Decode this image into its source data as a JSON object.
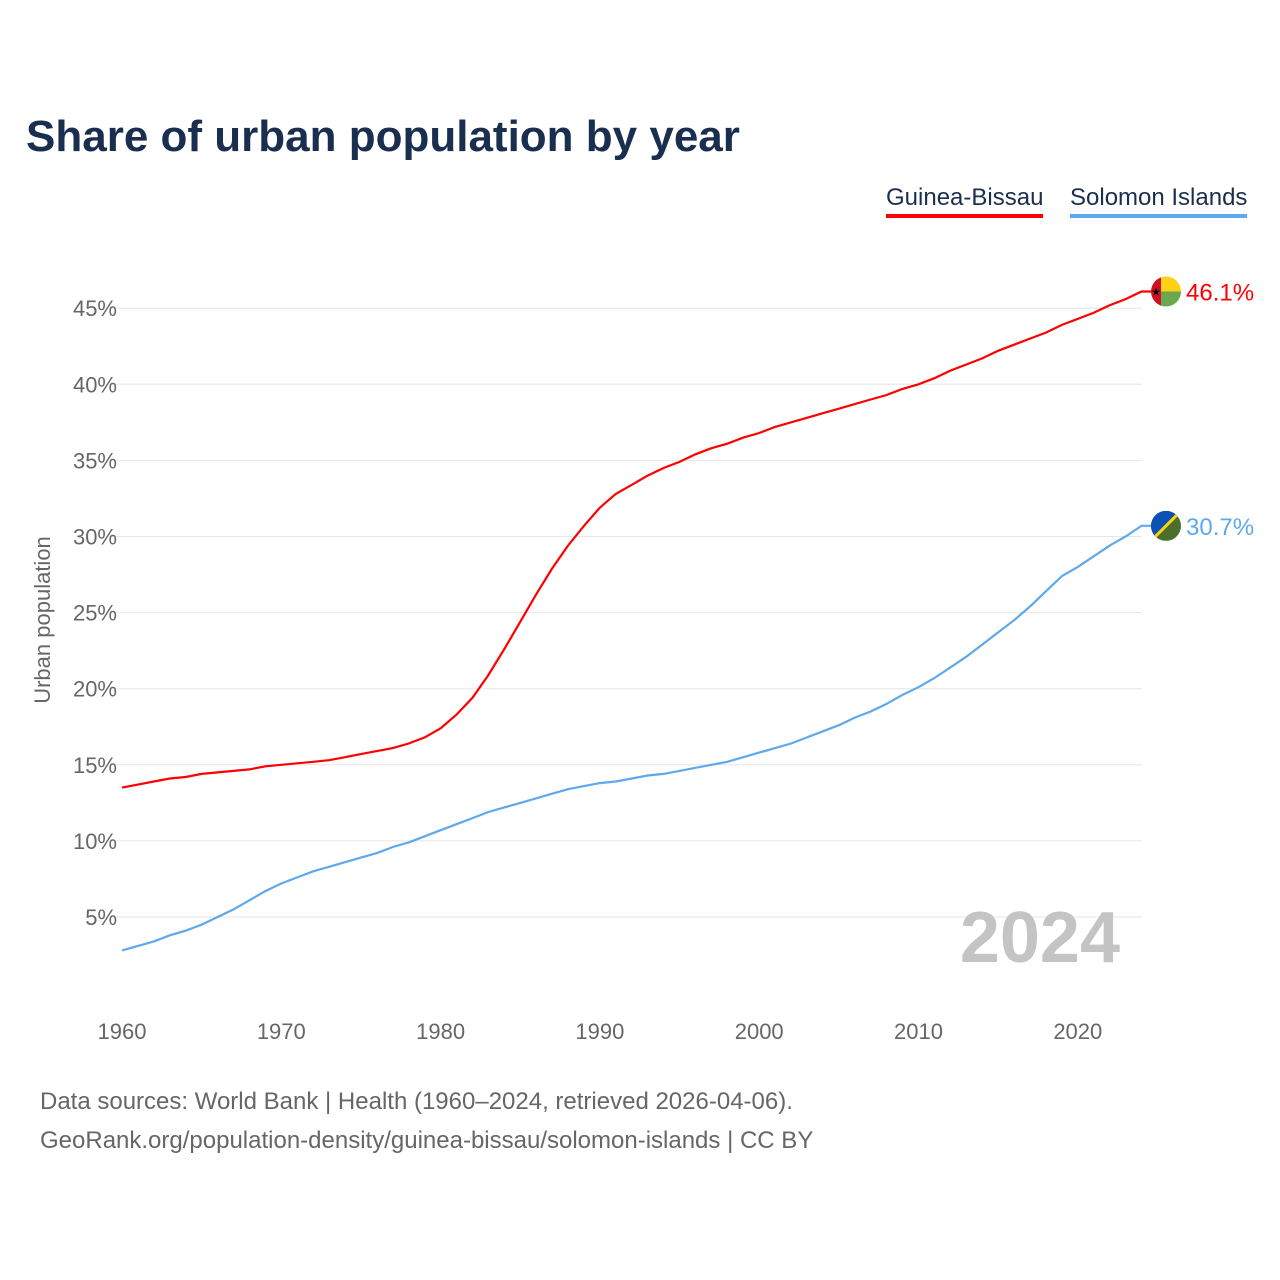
{
  "chart_data": {
    "type": "line",
    "title": "Share of urban population by year",
    "xlabel": "",
    "ylabel": "Urban population",
    "ylim": [
      0,
      47.5
    ],
    "xlim": [
      1960,
      2024
    ],
    "grid": true,
    "legend_placement": "top-right",
    "yticks": [
      5,
      10,
      15,
      20,
      25,
      30,
      35,
      40,
      45
    ],
    "ytick_labels": [
      "5%",
      "10%",
      "15%",
      "20%",
      "25%",
      "30%",
      "35%",
      "40%",
      "45%"
    ],
    "xticks": [
      1960,
      1970,
      1980,
      1990,
      2000,
      2010,
      2020
    ],
    "xtick_labels": [
      "1960",
      "1970",
      "1980",
      "1990",
      "2000",
      "2010",
      "2020"
    ],
    "year_label": "2024",
    "x_start": 1960,
    "series": [
      {
        "name": "Guinea-Bissau",
        "color": "#ff0000",
        "end_label": "46.1%",
        "flag": "guinea-bissau-flag",
        "values": [
          13.5,
          13.7,
          13.9,
          14.1,
          14.2,
          14.4,
          14.5,
          14.6,
          14.7,
          14.9,
          15.0,
          15.1,
          15.2,
          15.3,
          15.5,
          15.7,
          15.9,
          16.1,
          16.4,
          16.8,
          17.4,
          18.3,
          19.4,
          20.9,
          22.6,
          24.4,
          26.2,
          27.9,
          29.4,
          30.7,
          31.9,
          32.8,
          33.4,
          34.0,
          34.5,
          34.9,
          35.4,
          35.8,
          36.1,
          36.5,
          36.8,
          37.2,
          37.5,
          37.8,
          38.1,
          38.4,
          38.7,
          39.0,
          39.3,
          39.7,
          40.0,
          40.4,
          40.9,
          41.3,
          41.7,
          42.2,
          42.6,
          43.0,
          43.4,
          43.9,
          44.3,
          44.7,
          45.2,
          45.6,
          46.1
        ]
      },
      {
        "name": "Solomon Islands",
        "color": "#5ea8ec",
        "end_label": "30.7%",
        "flag": "solomon-islands-flag",
        "values": [
          2.8,
          3.1,
          3.4,
          3.8,
          4.1,
          4.5,
          5.0,
          5.5,
          6.1,
          6.7,
          7.2,
          7.6,
          8.0,
          8.3,
          8.6,
          8.9,
          9.2,
          9.6,
          9.9,
          10.3,
          10.7,
          11.1,
          11.5,
          11.9,
          12.2,
          12.5,
          12.8,
          13.1,
          13.4,
          13.6,
          13.8,
          13.9,
          14.1,
          14.3,
          14.4,
          14.6,
          14.8,
          15.0,
          15.2,
          15.5,
          15.8,
          16.1,
          16.4,
          16.8,
          17.2,
          17.6,
          18.1,
          18.5,
          19.0,
          19.6,
          20.1,
          20.7,
          21.4,
          22.1,
          22.9,
          23.7,
          24.5,
          25.4,
          26.4,
          27.4,
          28.0,
          28.7,
          29.4,
          30.0,
          30.7
        ]
      }
    ]
  },
  "footer": {
    "line1": "Data sources: World Bank | Health (1960–2024, retrieved 2026-04-06).",
    "line2": "GeoRank.org/population-density/guinea-bissau/solomon-islands | CC BY"
  }
}
